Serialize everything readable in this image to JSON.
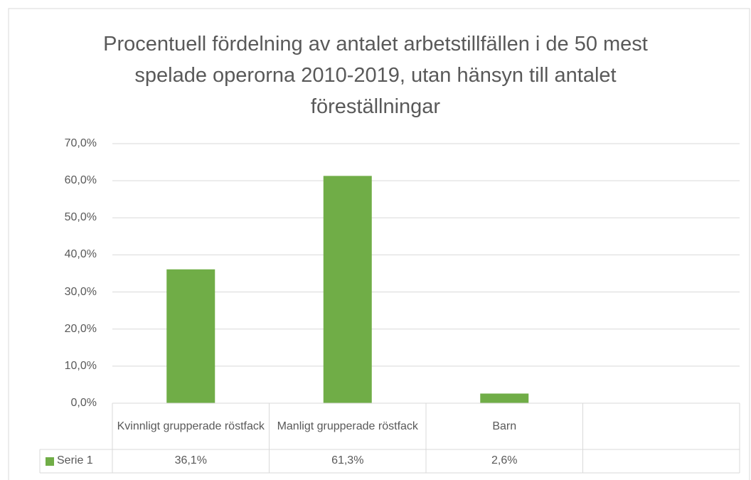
{
  "chart_data": {
    "type": "bar",
    "title": "Procentuell fördelning av antalet arbetstillfällen i de 50 mest spelade operorna 2010-2019, utan hänsyn till antalet föreställningar",
    "categories": [
      "Kvinnligt grupperade röstfack",
      "Manligt grupperade röstfack",
      "Barn",
      null
    ],
    "series": [
      {
        "name": "Serie 1",
        "color": "#70ad47",
        "values": [
          36.1,
          61.3,
          2.6,
          null
        ],
        "value_labels": [
          "36,1%",
          "61,3%",
          "2,6%",
          null
        ]
      }
    ],
    "ylim": [
      0,
      70
    ],
    "yticks": [
      {
        "value": 0,
        "label": "0,0%"
      },
      {
        "value": 10,
        "label": "10,0%"
      },
      {
        "value": 20,
        "label": "20,0%"
      },
      {
        "value": 30,
        "label": "30,0%"
      },
      {
        "value": 40,
        "label": "40,0%"
      },
      {
        "value": 50,
        "label": "50,0%"
      },
      {
        "value": 60,
        "label": "60,0%"
      },
      {
        "value": 70,
        "label": "70,0%"
      }
    ],
    "grid": true
  }
}
